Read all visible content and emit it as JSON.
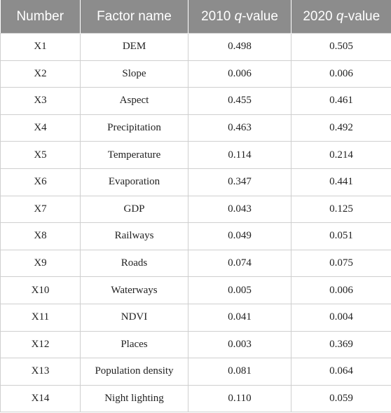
{
  "table": {
    "header": [
      "Number",
      "Factor name",
      [
        "2010 ",
        "q",
        "-value"
      ],
      [
        "2020 ",
        "q",
        "-value"
      ]
    ],
    "rows": [
      [
        "X1",
        "DEM",
        "0.498",
        "0.505"
      ],
      [
        "X2",
        "Slope",
        "0.006",
        "0.006"
      ],
      [
        "X3",
        "Aspect",
        "0.455",
        "0.461"
      ],
      [
        "X4",
        "Precipitation",
        "0.463",
        "0.492"
      ],
      [
        "X5",
        "Temperature",
        "0.114",
        "0.214"
      ],
      [
        "X6",
        "Evaporation",
        "0.347",
        "0.441"
      ],
      [
        "X7",
        "GDP",
        "0.043",
        "0.125"
      ],
      [
        "X8",
        "Railways",
        "0.049",
        "0.051"
      ],
      [
        "X9",
        "Roads",
        "0.074",
        "0.075"
      ],
      [
        "X10",
        "Waterways",
        "0.005",
        "0.006"
      ],
      [
        "X11",
        "NDVI",
        "0.041",
        "0.004"
      ],
      [
        "X12",
        "Places",
        "0.003",
        "0.369"
      ],
      [
        "X13",
        "Population density",
        "0.081",
        "0.064"
      ],
      [
        "X14",
        "Night lighting",
        "0.110",
        "0.059"
      ]
    ]
  }
}
